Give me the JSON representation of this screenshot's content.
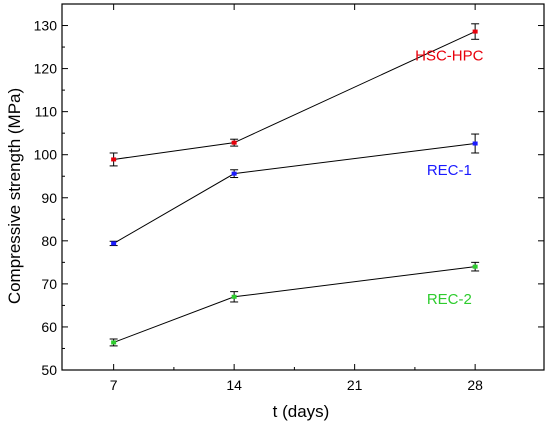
{
  "chart_data": {
    "type": "line",
    "title": "",
    "xlabel": "t (days)",
    "ylabel": "Compressive strength (MPa)",
    "xlim": [
      4,
      32
    ],
    "ylim": [
      50,
      135
    ],
    "x_ticks": [
      7,
      14,
      21,
      28
    ],
    "y_ticks": [
      50,
      60,
      70,
      80,
      90,
      100,
      110,
      120,
      130
    ],
    "x_tick_labels": [
      "7",
      "14",
      "21",
      "28"
    ],
    "y_tick_labels": [
      "50",
      "60",
      "70",
      "80",
      "90",
      "100",
      "110",
      "120",
      "130"
    ],
    "grid": false,
    "legend": "none (series labeled inline)",
    "series": [
      {
        "name": "HSC-HPC",
        "color": "#e8000b",
        "x": [
          7,
          14,
          28
        ],
        "y": [
          98.9,
          102.8,
          128.6
        ],
        "err": [
          1.5,
          0.8,
          1.8
        ],
        "label_at": [
          26.5,
          123
        ]
      },
      {
        "name": "REC-1",
        "color": "#1a1aff",
        "x": [
          7,
          14,
          28
        ],
        "y": [
          79.4,
          95.6,
          102.6
        ],
        "err": [
          0.5,
          0.9,
          2.2
        ],
        "label_at": [
          26.5,
          96.5
        ]
      },
      {
        "name": "REC-2",
        "color": "#2ecc2e",
        "x": [
          7,
          14,
          28
        ],
        "y": [
          56.4,
          67.0,
          74.0
        ],
        "err": [
          0.8,
          1.2,
          1.0
        ],
        "label_at": [
          26.5,
          66.5
        ]
      }
    ]
  }
}
